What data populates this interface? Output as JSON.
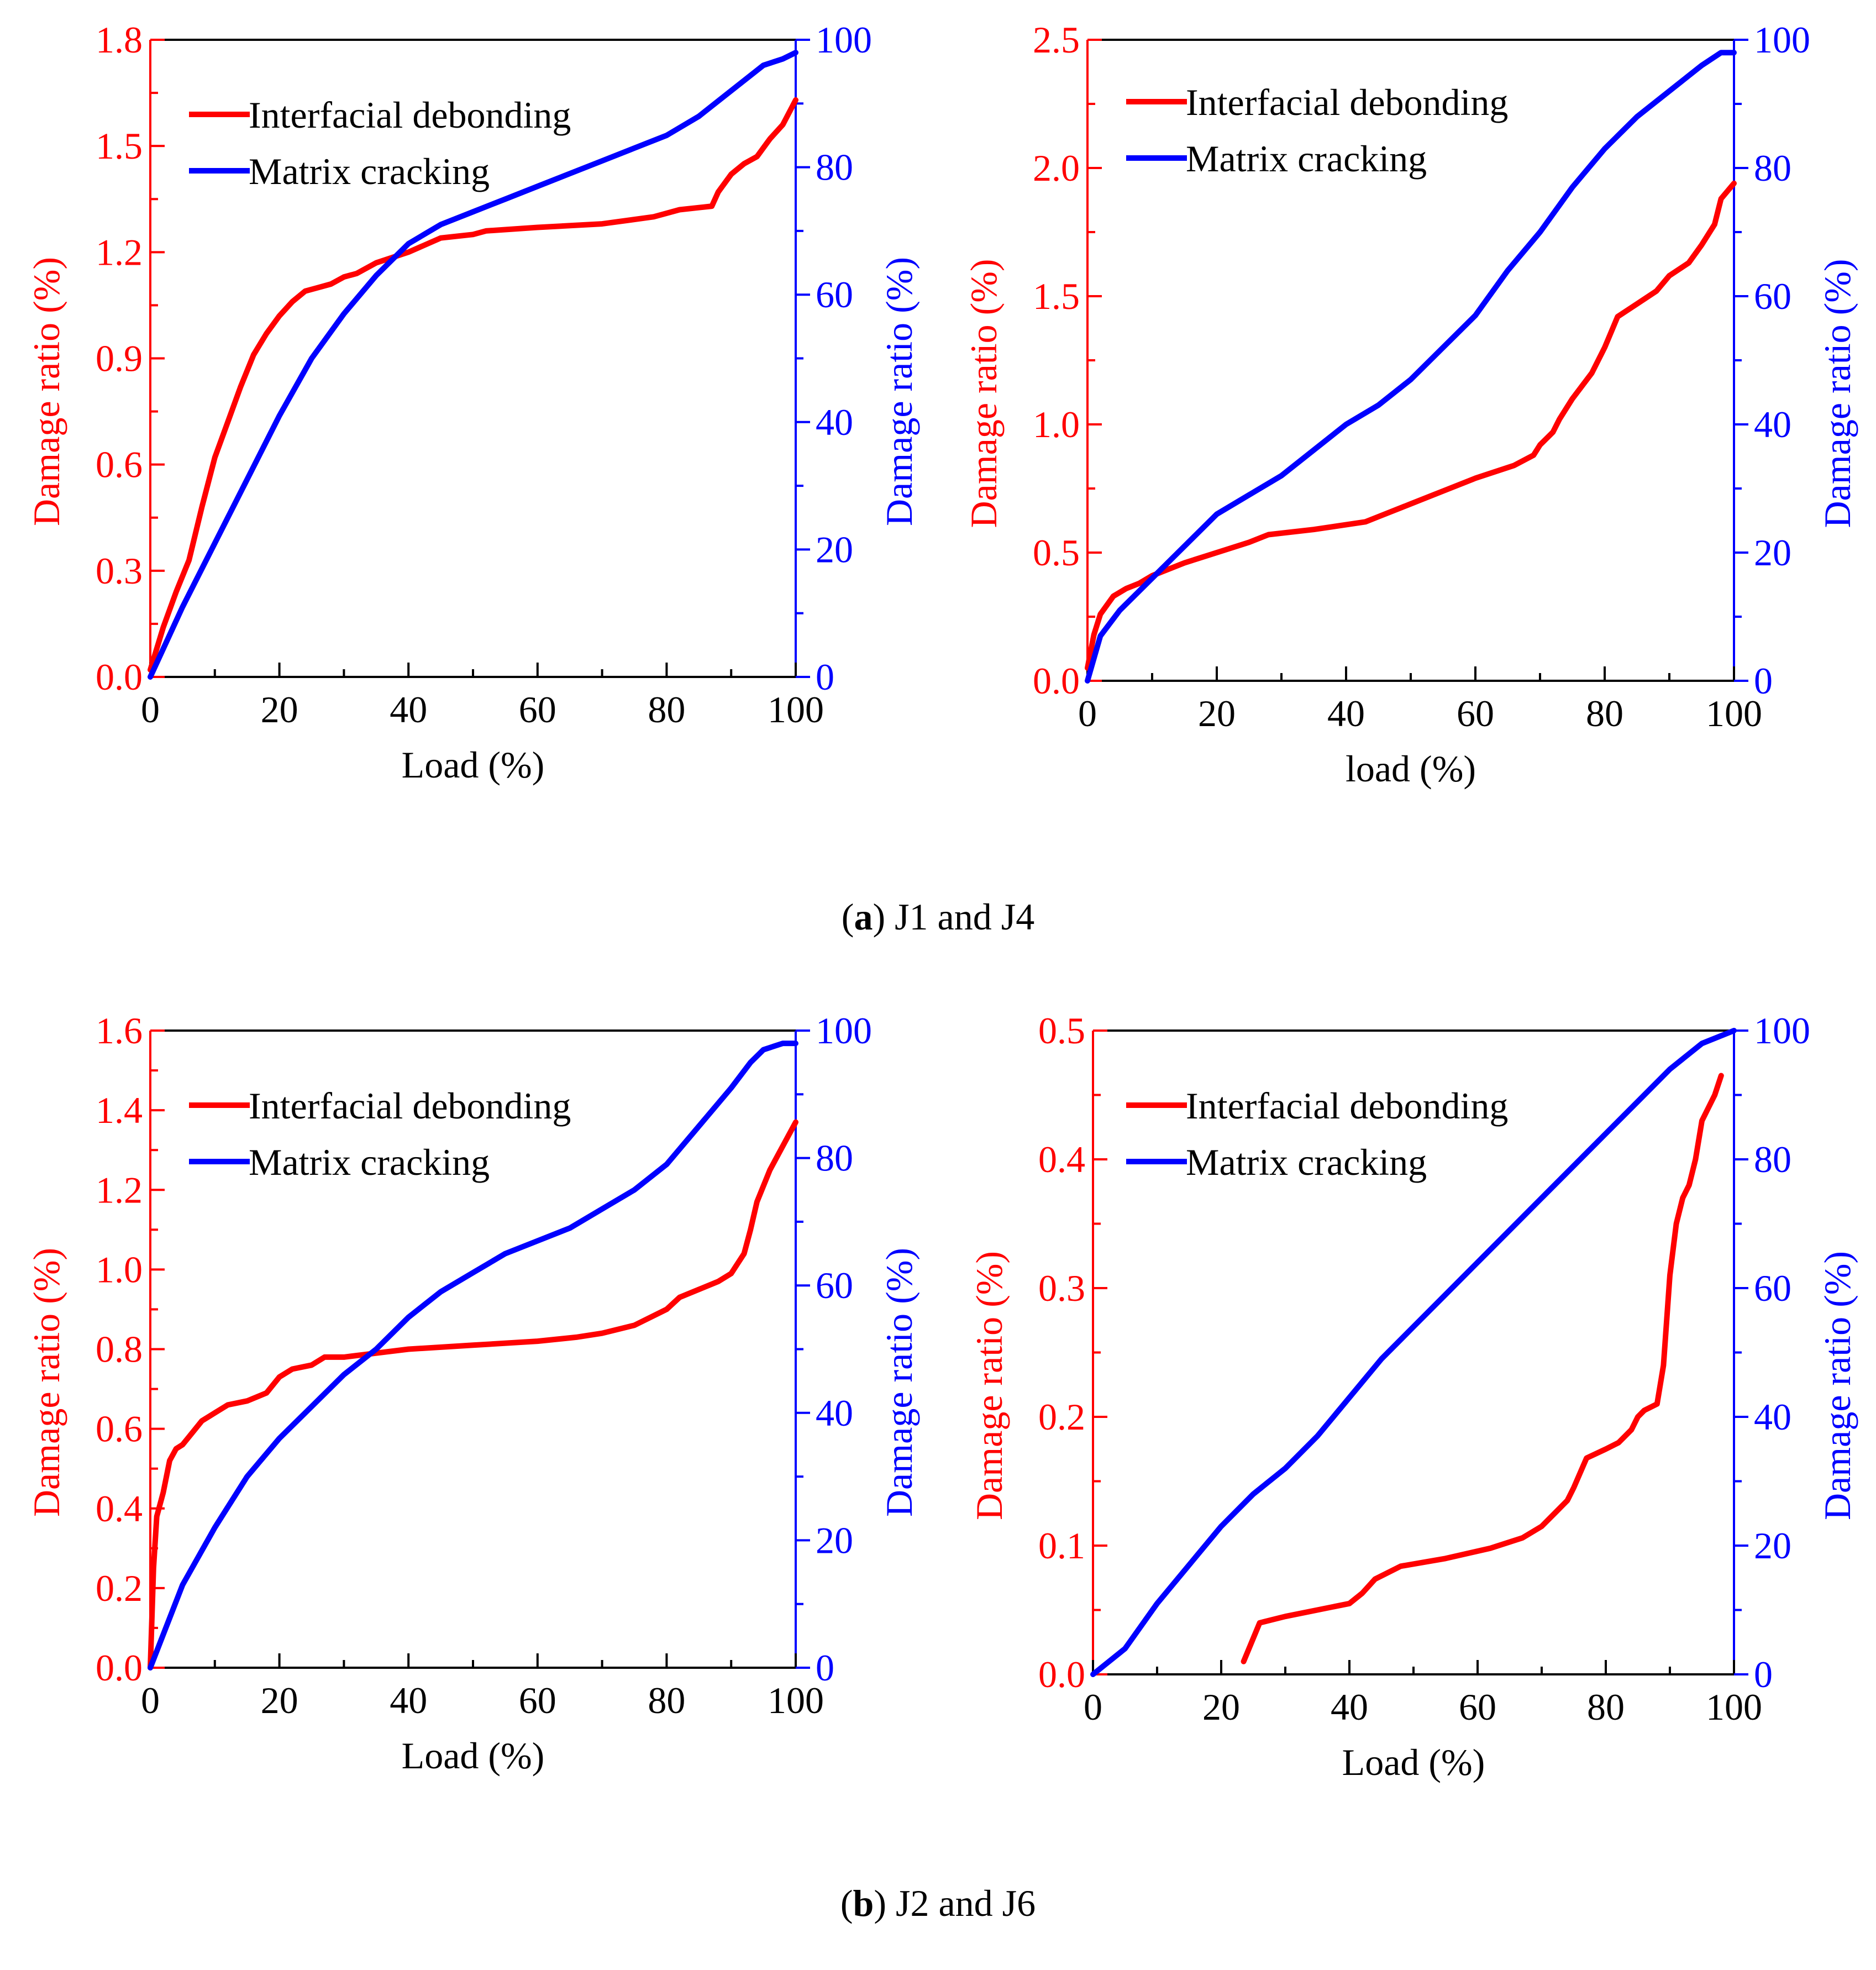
{
  "colors": {
    "left_axis": "#ff0000",
    "right_axis": "#0000ff",
    "frame": "#000000"
  },
  "captions": {
    "a": {
      "label": "a",
      "text": " J1 and J4"
    },
    "b": {
      "label": "b",
      "text": " J2 and J6"
    }
  },
  "chart_data": [
    {
      "id": "J1",
      "type": "line",
      "xlabel": "Load (%)",
      "ylabel_left": "Damage ratio (%)",
      "ylabel_right": "Damage ratio (%)",
      "xlim": [
        0,
        100
      ],
      "xticks": [
        0,
        20,
        40,
        60,
        80,
        100
      ],
      "ylim_left": [
        0,
        1.8
      ],
      "yticks_left": [
        "0.0",
        "0.3",
        "0.6",
        "0.9",
        "1.2",
        "1.5",
        "1.8"
      ],
      "ylim_right": [
        0,
        100
      ],
      "yticks_right": [
        0,
        20,
        40,
        60,
        80,
        100
      ],
      "legend": "top-left",
      "series": [
        {
          "name": "Interfacial debonding",
          "axis": "left",
          "color": "#ff0000",
          "x": [
            0,
            2,
            4,
            6,
            8,
            10,
            12,
            14,
            16,
            18,
            20,
            22,
            24,
            26,
            28,
            30,
            32,
            35,
            40,
            45,
            50,
            52,
            60,
            70,
            78,
            82,
            87,
            88,
            90,
            92,
            94,
            96,
            98,
            100
          ],
          "y": [
            0.02,
            0.14,
            0.24,
            0.33,
            0.48,
            0.62,
            0.72,
            0.82,
            0.91,
            0.97,
            1.02,
            1.06,
            1.09,
            1.1,
            1.11,
            1.13,
            1.14,
            1.17,
            1.2,
            1.24,
            1.25,
            1.26,
            1.27,
            1.28,
            1.3,
            1.32,
            1.33,
            1.37,
            1.42,
            1.45,
            1.47,
            1.52,
            1.56,
            1.63
          ]
        },
        {
          "name": "Matrix cracking",
          "axis": "right",
          "color": "#0000ff",
          "x": [
            0,
            5,
            10,
            15,
            20,
            25,
            30,
            35,
            40,
            45,
            50,
            55,
            60,
            65,
            70,
            75,
            80,
            85,
            90,
            95,
            98,
            100
          ],
          "y": [
            0,
            11,
            21,
            31,
            41,
            50,
            57,
            63,
            68,
            71,
            73,
            75,
            77,
            79,
            81,
            83,
            85,
            88,
            92,
            96,
            97,
            98
          ]
        }
      ]
    },
    {
      "id": "J4",
      "type": "line",
      "xlabel": "load (%)",
      "ylabel_left": "Damage ratio (%)",
      "ylabel_right": "Damage ratio (%)",
      "xlim": [
        0,
        100
      ],
      "xticks": [
        0,
        20,
        40,
        60,
        80,
        100
      ],
      "ylim_left": [
        0,
        2.5
      ],
      "yticks_left": [
        "0.0",
        "0.5",
        "1.0",
        "1.5",
        "2.0",
        "2.5"
      ],
      "ylim_right": [
        0,
        100
      ],
      "yticks_right": [
        0,
        20,
        40,
        60,
        80,
        100
      ],
      "legend": "top-left",
      "series": [
        {
          "name": "Interfacial debonding",
          "axis": "left",
          "color": "#ff0000",
          "x": [
            0,
            1,
            2,
            4,
            6,
            8,
            10,
            15,
            20,
            25,
            28,
            35,
            43,
            45,
            50,
            55,
            60,
            66,
            69,
            70,
            72,
            73,
            75,
            78,
            80,
            82,
            85,
            88,
            90,
            93,
            95,
            97,
            98,
            100
          ],
          "y": [
            0.05,
            0.18,
            0.26,
            0.33,
            0.36,
            0.38,
            0.41,
            0.46,
            0.5,
            0.54,
            0.57,
            0.59,
            0.62,
            0.64,
            0.69,
            0.74,
            0.79,
            0.84,
            0.88,
            0.92,
            0.97,
            1.02,
            1.1,
            1.2,
            1.3,
            1.42,
            1.47,
            1.52,
            1.58,
            1.63,
            1.7,
            1.78,
            1.88,
            1.94
          ]
        },
        {
          "name": "Matrix cracking",
          "axis": "right",
          "color": "#0000ff",
          "x": [
            0,
            2,
            5,
            10,
            15,
            20,
            25,
            30,
            35,
            40,
            45,
            50,
            55,
            60,
            65,
            70,
            75,
            80,
            85,
            90,
            95,
            98,
            100
          ],
          "y": [
            0,
            7,
            11,
            16,
            21,
            26,
            29,
            32,
            36,
            40,
            43,
            47,
            52,
            57,
            64,
            70,
            77,
            83,
            88,
            92,
            96,
            98,
            98
          ]
        }
      ]
    },
    {
      "id": "J2",
      "type": "line",
      "xlabel": "Load (%)",
      "ylabel_left": "Damage ratio (%)",
      "ylabel_right": "Damage ratio (%)",
      "xlim": [
        0,
        100
      ],
      "xticks": [
        0,
        20,
        40,
        60,
        80,
        100
      ],
      "ylim_left": [
        0,
        1.6
      ],
      "yticks_left": [
        "0.0",
        "0.2",
        "0.4",
        "0.6",
        "0.8",
        "1.0",
        "1.2",
        "1.4",
        "1.6"
      ],
      "ylim_right": [
        0,
        100
      ],
      "yticks_right": [
        0,
        20,
        40,
        60,
        80,
        100
      ],
      "legend": "top-left",
      "series": [
        {
          "name": "Interfacial debonding",
          "axis": "left",
          "color": "#ff0000",
          "x": [
            0,
            0.5,
            1,
            2,
            3,
            4,
            5,
            6,
            8,
            10,
            12,
            15,
            18,
            20,
            22,
            25,
            27,
            30,
            35,
            40,
            50,
            60,
            66,
            70,
            75,
            80,
            82,
            85,
            88,
            90,
            92,
            93,
            94,
            96,
            98,
            100
          ],
          "y": [
            0,
            0.25,
            0.38,
            0.44,
            0.52,
            0.55,
            0.56,
            0.58,
            0.62,
            0.64,
            0.66,
            0.67,
            0.69,
            0.73,
            0.75,
            0.76,
            0.78,
            0.78,
            0.79,
            0.8,
            0.81,
            0.82,
            0.83,
            0.84,
            0.86,
            0.9,
            0.93,
            0.95,
            0.97,
            0.99,
            1.04,
            1.1,
            1.17,
            1.25,
            1.31,
            1.37
          ]
        },
        {
          "name": "Matrix cracking",
          "axis": "right",
          "color": "#0000ff",
          "x": [
            0,
            5,
            10,
            15,
            20,
            25,
            30,
            35,
            40,
            45,
            50,
            55,
            60,
            65,
            70,
            75,
            80,
            85,
            90,
            93,
            95,
            98,
            100
          ],
          "y": [
            0,
            13,
            22,
            30,
            36,
            41,
            46,
            50,
            55,
            59,
            62,
            65,
            67,
            69,
            72,
            75,
            79,
            85,
            91,
            95,
            97,
            98,
            98
          ]
        }
      ]
    },
    {
      "id": "J6",
      "type": "line",
      "xlabel": "Load (%)",
      "ylabel_left": "Damage ratio (%)",
      "ylabel_right": "Damage ratio (%)",
      "xlim": [
        0,
        100
      ],
      "xticks": [
        0,
        20,
        40,
        60,
        80,
        100
      ],
      "ylim_left": [
        0,
        0.5
      ],
      "yticks_left": [
        "0.0",
        "0.1",
        "0.2",
        "0.3",
        "0.4",
        "0.5"
      ],
      "ylim_right": [
        0,
        100
      ],
      "yticks_right": [
        0,
        20,
        40,
        60,
        80,
        100
      ],
      "legend": "top-left",
      "series": [
        {
          "name": "Interfacial debonding",
          "axis": "left",
          "color": "#ff0000",
          "x": [
            23.5,
            26,
            30,
            35,
            40,
            42,
            44,
            48,
            55,
            62,
            67,
            70,
            72,
            74,
            75,
            77,
            80,
            82,
            84,
            85,
            86,
            88,
            89,
            90,
            91,
            92,
            93,
            94,
            95,
            96,
            97,
            98
          ],
          "y": [
            0.01,
            0.04,
            0.045,
            0.05,
            0.055,
            0.063,
            0.074,
            0.084,
            0.09,
            0.098,
            0.106,
            0.115,
            0.125,
            0.135,
            0.145,
            0.168,
            0.175,
            0.18,
            0.19,
            0.2,
            0.205,
            0.21,
            0.24,
            0.31,
            0.35,
            0.37,
            0.38,
            0.4,
            0.43,
            0.44,
            0.45,
            0.465
          ]
        },
        {
          "name": "Matrix cracking",
          "axis": "right",
          "color": "#0000ff",
          "x": [
            0,
            5,
            10,
            15,
            20,
            25,
            30,
            35,
            40,
            45,
            50,
            55,
            60,
            65,
            70,
            75,
            80,
            85,
            90,
            95,
            100
          ],
          "y": [
            0,
            4,
            11,
            17,
            23,
            28,
            32,
            37,
            43,
            49,
            54,
            59,
            64,
            69,
            74,
            79,
            84,
            89,
            94,
            98,
            100
          ]
        }
      ]
    }
  ]
}
